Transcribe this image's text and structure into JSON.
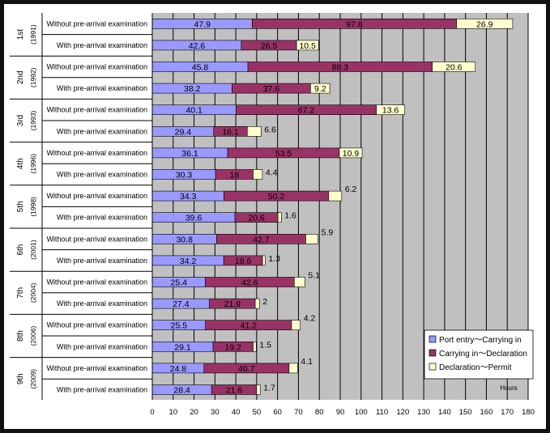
{
  "chart_data": {
    "type": "bar",
    "orientation": "horizontal",
    "stacked": true,
    "xlabel": "Hours",
    "xlim": [
      0,
      180
    ],
    "xticks": [
      0,
      10,
      20,
      30,
      40,
      50,
      60,
      70,
      80,
      90,
      100,
      110,
      120,
      130,
      140,
      150,
      160,
      170,
      180
    ],
    "grid": "vertical",
    "legend_position": "lower-right",
    "groups": [
      {
        "ordinal": "1st",
        "year": "(1991)"
      },
      {
        "ordinal": "2nd",
        "year": "(1992)"
      },
      {
        "ordinal": "3rd",
        "year": "(1993)"
      },
      {
        "ordinal": "4th",
        "year": "(1996)"
      },
      {
        "ordinal": "5th",
        "year": "(1998)"
      },
      {
        "ordinal": "6th",
        "year": "(2001)"
      },
      {
        "ordinal": "7th",
        "year": "(2004)"
      },
      {
        "ordinal": "8th",
        "year": "(2006)"
      },
      {
        "ordinal": "9th",
        "year": "(2009)"
      }
    ],
    "row_labels": [
      "Without pre-arrival examination",
      "With pre-arrival examination"
    ],
    "series": [
      {
        "name": "Port entry～Carrying in",
        "color": "#9999ff",
        "values": [
          [
            47.9,
            42.6
          ],
          [
            45.8,
            38.2
          ],
          [
            40.1,
            29.4
          ],
          [
            36.1,
            30.3
          ],
          [
            34.3,
            39.6
          ],
          [
            30.8,
            34.2
          ],
          [
            25.4,
            27.4
          ],
          [
            25.5,
            29.1
          ],
          [
            24.8,
            28.4
          ]
        ]
      },
      {
        "name": "Carrying in～Declaration",
        "color": "#993366",
        "values": [
          [
            97.8,
            26.5
          ],
          [
            88.3,
            37.6
          ],
          [
            67.2,
            16.1
          ],
          [
            53.5,
            18
          ],
          [
            50.2,
            20.6
          ],
          [
            42.7,
            18.6
          ],
          [
            42.6,
            21.9
          ],
          [
            41.2,
            19.2
          ],
          [
            40.7,
            21.6
          ]
        ]
      },
      {
        "name": "Declaration～Permit",
        "color": "#ffffcc",
        "values": [
          [
            26.9,
            10.5
          ],
          [
            20.6,
            9.2
          ],
          [
            13.6,
            6.6
          ],
          [
            10.9,
            4.4
          ],
          [
            6.2,
            1.6
          ],
          [
            5.9,
            1.3
          ],
          [
            5.1,
            2
          ],
          [
            4.2,
            1.5
          ],
          [
            4.1,
            1.7
          ]
        ]
      }
    ],
    "value_labels": [
      [
        "47.9",
        "97.8",
        "26.9",
        "42.6",
        "26.5",
        "10.5"
      ],
      [
        "45.8",
        "88.3",
        "20.6",
        "38.2",
        "37.6",
        "9.2"
      ],
      [
        "40.1",
        "67.2",
        "13.6",
        "29.4",
        "16.1",
        "6.6"
      ],
      [
        "36.1",
        "53.5",
        "10.9",
        "30.3",
        "18",
        "4.4"
      ],
      [
        "34.3",
        "50.2",
        "6.2",
        "39.6",
        "20.6",
        "1.6"
      ],
      [
        "30.8",
        "42.7",
        "5.9",
        "34.2",
        "18.6",
        "1.3"
      ],
      [
        "25.4",
        "42.6",
        "5.1",
        "27.4",
        "21.9",
        "2"
      ],
      [
        "25.5",
        "41.2",
        "4.2",
        "29.1",
        "19.2",
        "1.5"
      ],
      [
        "24.8",
        "40.7",
        "4.1",
        "28.4",
        "21.6",
        "1.7"
      ]
    ],
    "colors": {
      "plot_background": "#c0c0c0",
      "gridline": "#000000",
      "label_text": "#000000",
      "frame": "#111111"
    }
  }
}
